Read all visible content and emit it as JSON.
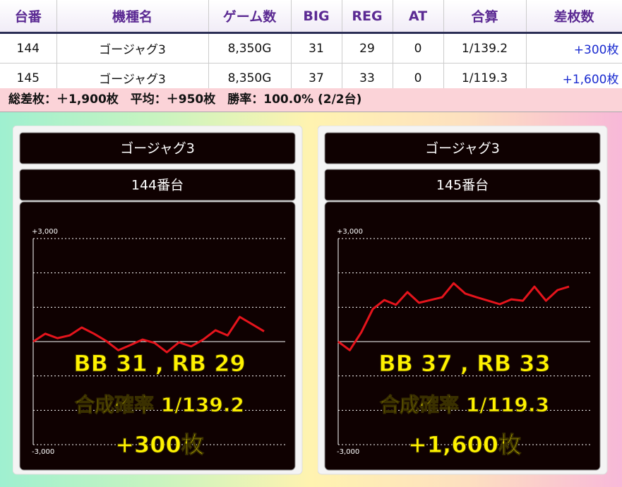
{
  "table": {
    "headers": [
      "台番",
      "機種名",
      "ゲーム数",
      "BIG",
      "REG",
      "AT",
      "合算",
      "差枚数"
    ],
    "rows": [
      [
        "144",
        "ゴージャグ3",
        "8,350G",
        "31",
        "29",
        "0",
        "1/139.2",
        "+300枚"
      ],
      [
        "145",
        "ゴージャグ3",
        "8,350G",
        "37",
        "33",
        "0",
        "1/119.3",
        "+1,600枚"
      ]
    ]
  },
  "summary": "総差枚：＋1,900枚　平均：＋950枚　勝率：100.0% (2/2台)",
  "chart_data": [
    {
      "type": "line",
      "title": "ゴージャグ3",
      "subtitle": "144番台",
      "color": "#e5141c",
      "values": [
        0,
        230,
        100,
        180,
        410,
        230,
        20,
        -250,
        -100,
        60,
        -40,
        -310,
        -20,
        -140,
        60,
        330,
        180,
        720,
        510,
        300
      ],
      "ylim": [
        -3000,
        3000
      ],
      "yticks": [
        {
          "value": 3000,
          "label": "+3,000"
        },
        {
          "value": -3000,
          "label": "-3,000"
        }
      ],
      "gridlines": [
        2000,
        1000,
        0,
        -1000,
        -2000
      ],
      "annotations": [
        "BB 31 , RB 29",
        "合成確率  1/139.2",
        "+300枚"
      ]
    },
    {
      "type": "line",
      "title": "ゴージャグ3",
      "subtitle": "145番台",
      "color": "#e5141c",
      "values": [
        0,
        -250,
        270,
        950,
        1210,
        1070,
        1440,
        1130,
        1210,
        1290,
        1700,
        1400,
        1290,
        1190,
        1090,
        1230,
        1190,
        1600,
        1190,
        1500,
        1600
      ],
      "ylim": [
        -3000,
        3000
      ],
      "yticks": [
        {
          "value": 3000,
          "label": "+3,000"
        },
        {
          "value": -3000,
          "label": "-3,000"
        }
      ],
      "gridlines": [
        2000,
        1000,
        0,
        -1000,
        -2000
      ],
      "annotations": [
        "BB 37 , RB 33",
        "合成確率  1/119.3",
        "+1,600枚"
      ]
    }
  ]
}
